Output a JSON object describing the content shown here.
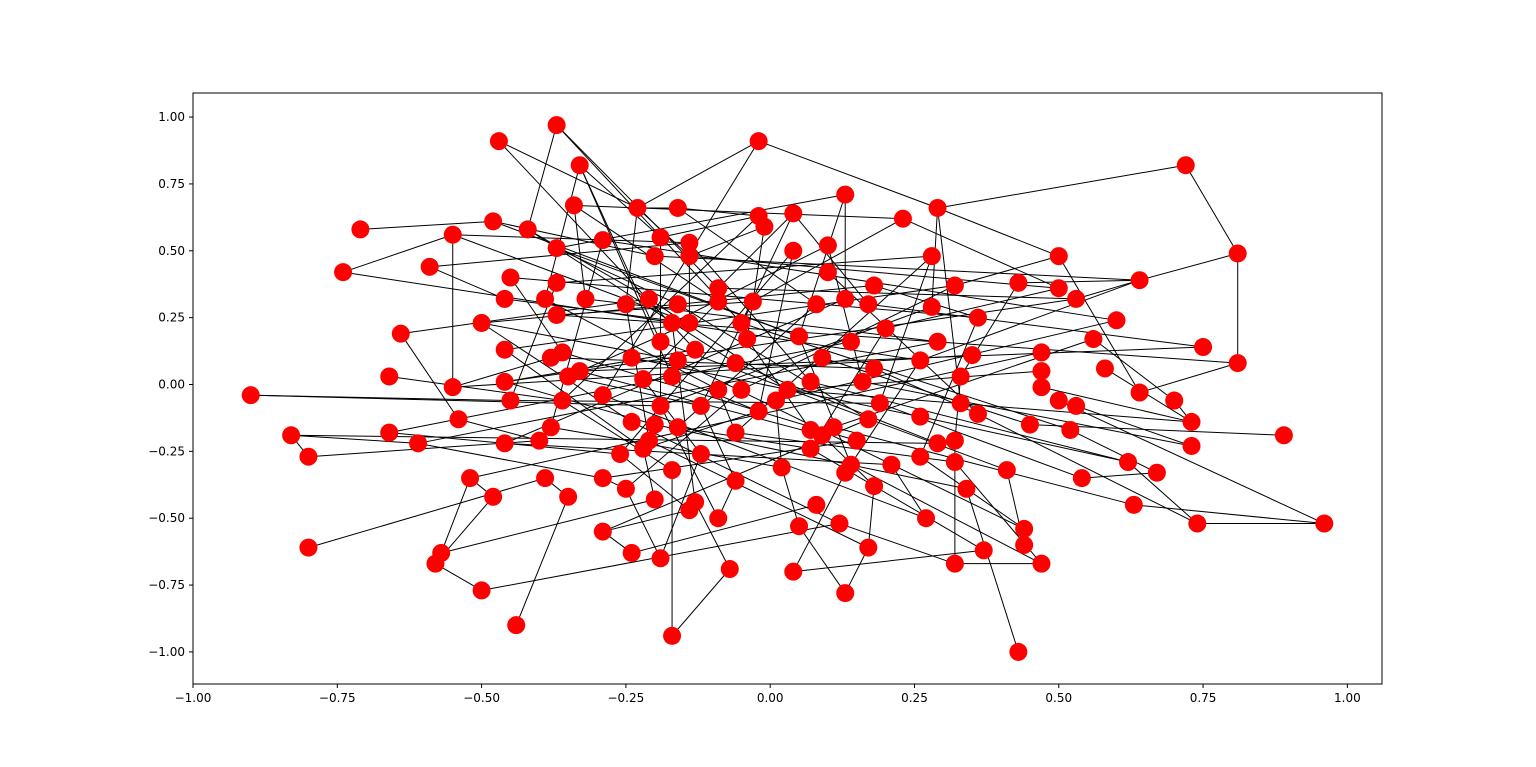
{
  "chart_data": {
    "type": "network",
    "color": "#ff0000",
    "edge_color": "#000000",
    "x": [
      -0.37,
      -0.02,
      -0.47,
      0.72,
      -0.33,
      0.13,
      -0.34,
      -0.23,
      -0.16,
      0.29,
      -0.02,
      0.04,
      0.23,
      -0.48,
      -0.71,
      -0.42,
      -0.55,
      -0.01,
      -0.29,
      -0.19,
      -0.14,
      0.81,
      0.5,
      -0.37,
      0.1,
      0.04,
      0.28,
      -0.2,
      -0.14,
      -0.59,
      -0.74,
      -0.45,
      0.1,
      -0.09,
      0.43,
      0.64,
      -0.37,
      0.32,
      0.18,
      0.5,
      0.53,
      -0.46,
      -0.39,
      -0.32,
      -0.25,
      -0.21,
      -0.16,
      -0.09,
      -0.03,
      0.08,
      0.13,
      0.17,
      0.28,
      -0.5,
      -0.37,
      -0.17,
      -0.14,
      -0.05,
      0.36,
      0.6,
      0.2,
      -0.64,
      0.05,
      -0.04,
      0.56,
      -0.19,
      0.14,
      0.29,
      0.75,
      -0.46,
      -0.36,
      -0.38,
      -0.24,
      -0.16,
      -0.13,
      -0.06,
      0.09,
      0.26,
      0.35,
      0.47,
      0.58,
      0.81,
      -0.66,
      -0.35,
      -0.33,
      -0.22,
      -0.17,
      -0.46,
      -0.55,
      0.07,
      0.16,
      0.18,
      0.33,
      0.47,
      -0.9,
      -0.45,
      -0.36,
      -0.29,
      -0.19,
      -0.12,
      -0.09,
      -0.05,
      0.01,
      0.03,
      -0.02,
      0.19,
      0.33,
      0.47,
      0.5,
      0.53,
      0.64,
      0.7,
      -0.54,
      -0.38,
      -0.24,
      -0.2,
      -0.16,
      -0.06,
      0.07,
      0.11,
      0.09,
      0.17,
      0.26,
      0.36,
      0.45,
      0.52,
      0.73,
      -0.83,
      -0.66,
      -0.61,
      -0.46,
      -0.4,
      -0.26,
      -0.22,
      -0.21,
      -0.12,
      0.07,
      0.15,
      0.26,
      0.29,
      0.32,
      0.73,
      0.89,
      -0.8,
      -0.52,
      -0.39,
      -0.29,
      -0.17,
      -0.06,
      0.02,
      0.14,
      0.13,
      0.21,
      0.32,
      0.41,
      0.54,
      0.62,
      0.67,
      -0.48,
      -0.35,
      -0.25,
      -0.2,
      -0.13,
      0.18,
      0.34,
      -0.14,
      0.08,
      -0.09,
      0.05,
      0.12,
      0.27,
      0.44,
      0.63,
      0.74,
      0.96,
      -0.29,
      0.44,
      -0.8,
      -0.57,
      -0.58,
      -0.24,
      -0.19,
      0.17,
      0.37,
      0.47,
      0.32,
      -0.07,
      0.04,
      -0.5,
      0.13,
      -0.44,
      -0.17,
      0.43
    ],
    "values": [
      0.97,
      0.91,
      0.91,
      0.82,
      0.82,
      0.71,
      0.67,
      0.66,
      0.66,
      0.66,
      0.63,
      0.64,
      0.62,
      0.61,
      0.58,
      0.58,
      0.56,
      0.59,
      0.54,
      0.55,
      0.53,
      0.49,
      0.48,
      0.51,
      0.52,
      0.5,
      0.48,
      0.48,
      0.48,
      0.44,
      0.42,
      0.4,
      0.42,
      0.36,
      0.38,
      0.39,
      0.38,
      0.37,
      0.37,
      0.36,
      0.32,
      0.32,
      0.32,
      0.32,
      0.3,
      0.32,
      0.3,
      0.31,
      0.31,
      0.3,
      0.32,
      0.3,
      0.29,
      0.23,
      0.26,
      0.23,
      0.23,
      0.23,
      0.25,
      0.24,
      0.21,
      0.19,
      0.18,
      0.17,
      0.17,
      0.16,
      0.16,
      0.16,
      0.14,
      0.13,
      0.12,
      0.1,
      0.1,
      0.09,
      0.13,
      0.08,
      0.1,
      0.09,
      0.11,
      0.12,
      0.06,
      0.08,
      0.03,
      0.03,
      0.05,
      0.02,
      0.03,
      0.01,
      -0.01,
      0.01,
      0.01,
      0.06,
      0.03,
      0.05,
      -0.04,
      -0.06,
      -0.06,
      -0.04,
      -0.08,
      -0.08,
      -0.02,
      -0.02,
      -0.06,
      -0.02,
      -0.1,
      -0.07,
      -0.07,
      -0.01,
      -0.06,
      -0.08,
      -0.03,
      -0.06,
      -0.13,
      -0.16,
      -0.14,
      -0.15,
      -0.16,
      -0.18,
      -0.17,
      -0.16,
      -0.19,
      -0.13,
      -0.12,
      -0.11,
      -0.15,
      -0.17,
      -0.14,
      -0.19,
      -0.18,
      -0.22,
      -0.22,
      -0.21,
      -0.26,
      -0.24,
      -0.21,
      -0.26,
      -0.24,
      -0.21,
      -0.27,
      -0.22,
      -0.21,
      -0.23,
      -0.19,
      -0.27,
      -0.35,
      -0.35,
      -0.35,
      -0.32,
      -0.36,
      -0.31,
      -0.3,
      -0.33,
      -0.3,
      -0.29,
      -0.32,
      -0.35,
      -0.29,
      -0.33,
      -0.42,
      -0.42,
      -0.39,
      -0.43,
      -0.44,
      -0.38,
      -0.39,
      -0.47,
      -0.45,
      -0.5,
      -0.53,
      -0.52,
      -0.5,
      -0.54,
      -0.45,
      -0.52,
      -0.52,
      -0.55,
      -0.6,
      -0.61,
      -0.63,
      -0.67,
      -0.63,
      -0.65,
      -0.61,
      -0.62,
      -0.67,
      -0.67,
      -0.69,
      -0.7,
      -0.77,
      -0.78,
      -0.9,
      -0.94,
      -1.0
    ],
    "edges": [
      [
        0,
        15
      ],
      [
        0,
        33
      ],
      [
        0,
        57
      ],
      [
        1,
        7
      ],
      [
        1,
        9
      ],
      [
        1,
        97
      ],
      [
        2,
        7
      ],
      [
        2,
        74
      ],
      [
        3,
        9
      ],
      [
        3,
        21
      ],
      [
        4,
        19
      ],
      [
        4,
        42
      ],
      [
        4,
        65
      ],
      [
        4,
        86
      ],
      [
        5,
        23
      ],
      [
        5,
        50
      ],
      [
        5,
        62
      ],
      [
        6,
        43
      ],
      [
        6,
        47
      ],
      [
        6,
        12
      ],
      [
        7,
        8
      ],
      [
        7,
        28
      ],
      [
        7,
        44
      ],
      [
        8,
        10
      ],
      [
        8,
        49
      ],
      [
        9,
        22
      ],
      [
        9,
        106
      ],
      [
        9,
        52
      ],
      [
        10,
        19
      ],
      [
        10,
        96
      ],
      [
        11,
        57
      ],
      [
        11,
        51
      ],
      [
        12,
        48
      ],
      [
        12,
        39
      ],
      [
        13,
        14
      ],
      [
        13,
        27
      ],
      [
        13,
        62
      ],
      [
        15,
        75
      ],
      [
        15,
        45
      ],
      [
        16,
        20
      ],
      [
        16,
        88
      ],
      [
        16,
        56
      ],
      [
        17,
        28
      ],
      [
        17,
        63
      ],
      [
        18,
        59
      ],
      [
        18,
        113
      ],
      [
        19,
        98
      ],
      [
        20,
        56
      ],
      [
        20,
        89
      ],
      [
        21,
        35
      ],
      [
        21,
        81
      ],
      [
        22,
        37
      ],
      [
        22,
        110
      ],
      [
        23,
        46
      ],
      [
        23,
        62
      ],
      [
        24,
        55
      ],
      [
        24,
        90
      ],
      [
        25,
        104
      ],
      [
        25,
        132
      ],
      [
        26,
        105
      ],
      [
        26,
        117
      ],
      [
        27,
        35
      ],
      [
        28,
        39
      ],
      [
        29,
        20
      ],
      [
        29,
        41
      ],
      [
        30,
        16
      ],
      [
        30,
        77
      ],
      [
        31,
        58
      ],
      [
        31,
        70
      ],
      [
        32,
        123
      ],
      [
        33,
        40
      ],
      [
        33,
        11
      ],
      [
        34,
        92
      ],
      [
        34,
        35
      ],
      [
        35,
        77
      ],
      [
        35,
        40
      ],
      [
        36,
        95
      ],
      [
        36,
        26
      ],
      [
        37,
        69
      ],
      [
        37,
        101
      ],
      [
        38,
        53
      ],
      [
        38,
        58
      ],
      [
        39,
        60
      ],
      [
        40,
        87
      ],
      [
        41,
        56
      ],
      [
        42,
        100
      ],
      [
        43,
        67
      ],
      [
        44,
        134
      ],
      [
        45,
        61
      ],
      [
        45,
        103
      ],
      [
        46,
        121
      ],
      [
        47,
        85
      ],
      [
        48,
        54
      ],
      [
        48,
        99
      ],
      [
        49,
        116
      ],
      [
        50,
        130
      ],
      [
        51,
        68
      ],
      [
        52,
        98
      ],
      [
        53,
        73
      ],
      [
        53,
        114
      ],
      [
        54,
        81
      ],
      [
        55,
        162
      ],
      [
        56,
        83
      ],
      [
        57,
        125
      ],
      [
        58,
        138
      ],
      [
        59,
        102
      ],
      [
        60,
        136
      ],
      [
        61,
        112
      ],
      [
        62,
        150
      ],
      [
        63,
        118
      ],
      [
        64,
        111
      ],
      [
        64,
        119
      ],
      [
        65,
        154
      ],
      [
        66,
        128
      ],
      [
        67,
        129
      ],
      [
        68,
        84
      ],
      [
        69,
        133
      ],
      [
        70,
        137
      ],
      [
        71,
        91
      ],
      [
        72,
        122
      ],
      [
        73,
        171
      ],
      [
        74,
        87
      ],
      [
        75,
        139
      ],
      [
        76,
        124
      ],
      [
        77,
        151
      ],
      [
        78,
        88
      ],
      [
        79,
        144
      ],
      [
        80,
        126
      ],
      [
        81,
        110
      ],
      [
        82,
        96
      ],
      [
        83,
        99
      ],
      [
        84,
        120
      ],
      [
        85,
        135
      ],
      [
        86,
        104
      ],
      [
        87,
        115
      ],
      [
        88,
        71
      ],
      [
        89,
        156
      ],
      [
        90,
        141
      ],
      [
        91,
        123
      ],
      [
        92,
        140
      ],
      [
        93,
        103
      ],
      [
        94,
        95
      ],
      [
        94,
        98
      ],
      [
        95,
        105
      ],
      [
        96,
        147
      ],
      [
        97,
        170
      ],
      [
        98,
        167
      ],
      [
        99,
        148
      ],
      [
        100,
        117
      ],
      [
        101,
        160
      ],
      [
        102,
        149
      ],
      [
        103,
        126
      ],
      [
        104,
        133
      ],
      [
        105,
        155
      ],
      [
        107,
        126
      ],
      [
        108,
        174
      ],
      [
        109,
        141
      ],
      [
        111,
        126
      ],
      [
        112,
        131
      ],
      [
        113,
        149
      ],
      [
        114,
        169
      ],
      [
        115,
        164
      ],
      [
        116,
        136
      ],
      [
        117,
        153
      ],
      [
        119,
        172
      ],
      [
        120,
        163
      ],
      [
        121,
        175
      ],
      [
        122,
        156
      ],
      [
        123,
        173
      ],
      [
        124,
        142
      ],
      [
        125,
        157
      ],
      [
        127,
        139
      ],
      [
        127,
        129
      ],
      [
        143,
        131
      ],
      [
        143,
        127
      ],
      [
        128,
        132
      ],
      [
        129,
        146
      ],
      [
        130,
        152
      ],
      [
        132,
        165
      ],
      [
        133,
        161
      ],
      [
        134,
        182
      ],
      [
        135,
        181
      ],
      [
        136,
        183
      ],
      [
        137,
        146
      ],
      [
        138,
        171
      ],
      [
        140,
        185
      ],
      [
        144,
        178
      ],
      [
        144,
        158
      ],
      [
        145,
        177
      ],
      [
        145,
        159
      ],
      [
        146,
        160
      ],
      [
        147,
        191
      ],
      [
        148,
        167
      ],
      [
        149,
        168
      ],
      [
        150,
        184
      ],
      [
        151,
        187
      ],
      [
        152,
        170
      ],
      [
        153,
        184
      ],
      [
        154,
        176
      ],
      [
        155,
        157
      ],
      [
        156,
        173
      ],
      [
        158,
        179
      ],
      [
        159,
        190
      ],
      [
        160,
        181
      ],
      [
        161,
        178
      ],
      [
        162,
        186
      ],
      [
        163,
        182
      ],
      [
        164,
        192
      ],
      [
        165,
        175
      ],
      [
        166,
        180
      ],
      [
        168,
        189
      ],
      [
        169,
        185
      ],
      [
        171,
        176
      ],
      [
        172,
        174
      ],
      [
        173,
        174
      ],
      [
        175,
        180
      ],
      [
        179,
        188
      ],
      [
        182,
        189
      ],
      [
        184,
        185
      ],
      [
        186,
        191
      ],
      [
        187,
        183
      ],
      [
        188,
        169
      ]
    ],
    "xlim": [
      -1.0,
      1.06
    ],
    "ylim": [
      -1.12,
      1.09
    ],
    "xticks": [
      {
        "value": -1.0,
        "label": "−1.00"
      },
      {
        "value": -0.75,
        "label": "−0.75"
      },
      {
        "value": -0.5,
        "label": "−0.50"
      },
      {
        "value": -0.25,
        "label": "−0.25"
      },
      {
        "value": 0,
        "label": "0.00"
      },
      {
        "value": 0.25,
        "label": "0.25"
      },
      {
        "value": 0.5,
        "label": "0.50"
      },
      {
        "value": 0.75,
        "label": "0.75"
      },
      {
        "value": 1.0,
        "label": "1.00"
      }
    ],
    "yticks": [
      {
        "value": -1.0,
        "label": "−1.00"
      },
      {
        "value": -0.75,
        "label": "−0.75"
      },
      {
        "value": -0.5,
        "label": "−0.50"
      },
      {
        "value": -0.25,
        "label": "−0.25"
      },
      {
        "value": 0,
        "label": "0.00"
      },
      {
        "value": 0.25,
        "label": "0.25"
      },
      {
        "value": 0.5,
        "label": "0.50"
      },
      {
        "value": 0.75,
        "label": "0.75"
      },
      {
        "value": 1.0,
        "label": "1.00"
      }
    ]
  }
}
